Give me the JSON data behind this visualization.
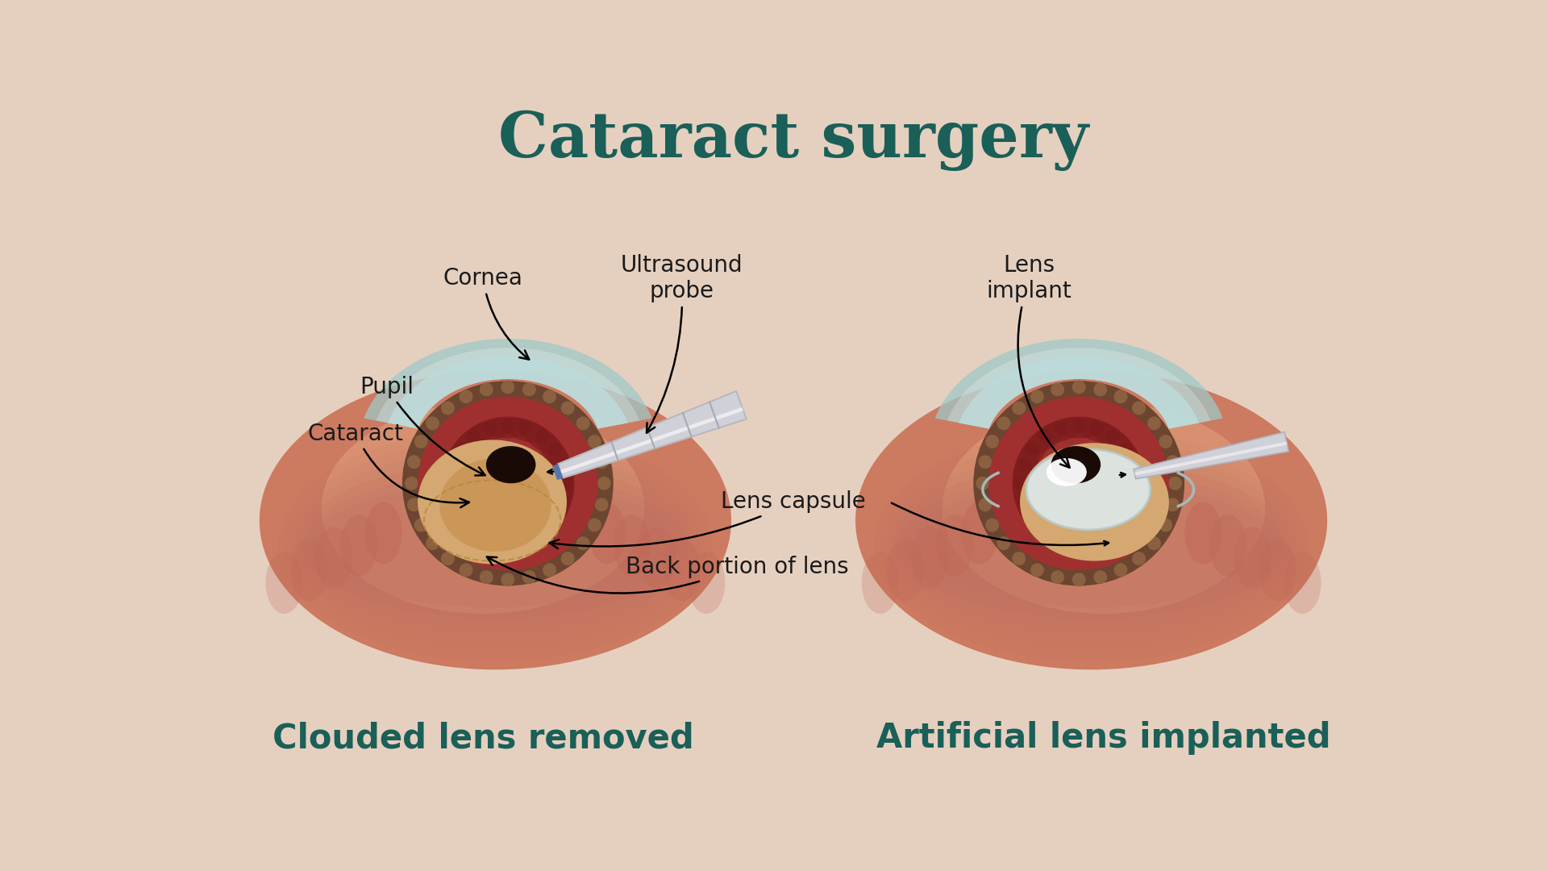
{
  "title": "Cataract surgery",
  "title_color": "#1a5f58",
  "title_fontsize": 56,
  "background_color": "#e5d0c0",
  "subtitle_left": "Clouded lens removed",
  "subtitle_right": "Artificial lens implanted",
  "subtitle_color": "#1a5f58",
  "subtitle_fontsize": 30,
  "label_fontsize": 20,
  "label_color": "#1a1a1a",
  "bg_color": "#e5d0c0",
  "cornea_outer": "#9fc8c8",
  "cornea_mid": "#b8d8d8",
  "cornea_inner": "#cce6e6",
  "sclera_color": "#6b4530",
  "iris_color": "#a03030",
  "iris_dark": "#7a1a1a",
  "ciliary_color": "#7a5535",
  "lens_color": "#d4a870",
  "lens_color2": "#c89050",
  "pupil_color": "#1a0a05",
  "implant_color": "#e8e8e8",
  "implant_edge": "#cccccc",
  "tissue_color": "#cc7a60",
  "tissue_color2": "#d89070",
  "probe_color": "#d0d0d8",
  "probe_tip_color": "#5577aa",
  "fold_color": "#be7060"
}
